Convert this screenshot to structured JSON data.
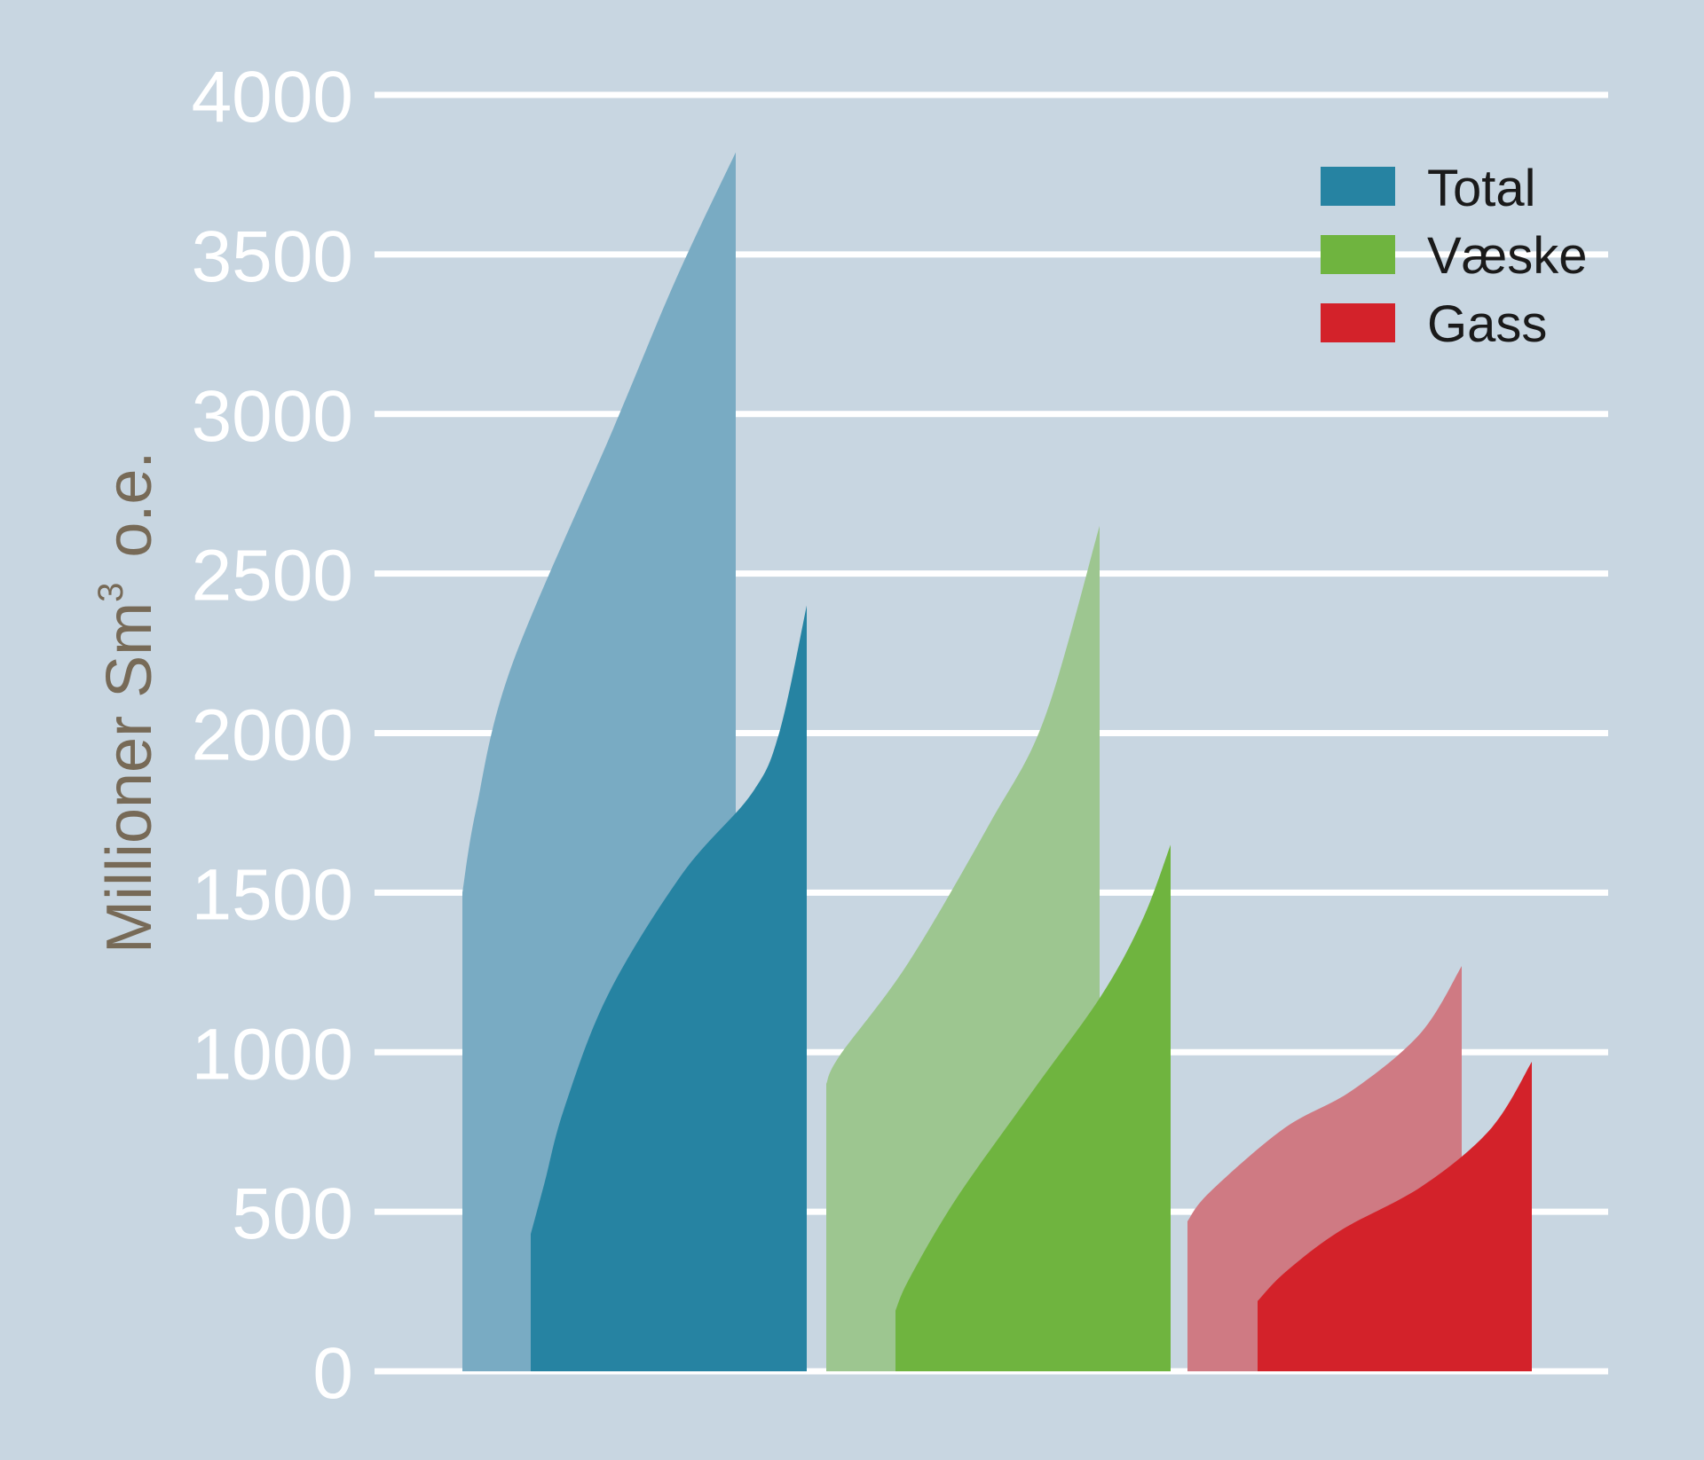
{
  "chart_data": {
    "type": "area",
    "title": "",
    "xlabel": "",
    "ylabel_main": "Millioner Sm",
    "ylabel_sup": "3",
    "ylabel_suffix": "o.e.",
    "ylim": [
      0,
      4000
    ],
    "yticks": [
      "0",
      "500",
      "1000",
      "1500",
      "2000",
      "2500",
      "3000",
      "3500",
      "4000"
    ],
    "grid": true,
    "legend_position": "top-right",
    "legend": [
      {
        "key": "total",
        "label": "Total",
        "color": "#2683a2"
      },
      {
        "key": "vaeske",
        "label": "Væske",
        "color": "#6fb43f"
      },
      {
        "key": "gass",
        "label": "Gass",
        "color": "#d3222a"
      }
    ],
    "series": [
      {
        "group": "total",
        "variant": "light",
        "color": "#79abc3",
        "points": [
          [
            0,
            1500
          ],
          [
            0.05,
            1760
          ],
          [
            0.18,
            2210
          ],
          [
            0.55,
            2950
          ],
          [
            0.78,
            3420
          ],
          [
            1,
            3820
          ]
        ]
      },
      {
        "group": "total",
        "variant": "dark",
        "color": "#2683a2",
        "points": [
          [
            0,
            430
          ],
          [
            0.05,
            590
          ],
          [
            0.12,
            820
          ],
          [
            0.28,
            1180
          ],
          [
            0.55,
            1560
          ],
          [
            0.8,
            1810
          ],
          [
            0.9,
            2000
          ],
          [
            1,
            2400
          ]
        ]
      },
      {
        "group": "vaeske",
        "variant": "light",
        "color": "#9dc690",
        "points": [
          [
            0,
            900
          ],
          [
            0.05,
            990
          ],
          [
            0.3,
            1280
          ],
          [
            0.6,
            1720
          ],
          [
            0.8,
            2050
          ],
          [
            1,
            2650
          ]
        ]
      },
      {
        "group": "vaeske",
        "variant": "dark",
        "color": "#6fb43f",
        "points": [
          [
            0,
            190
          ],
          [
            0.05,
            290
          ],
          [
            0.22,
            540
          ],
          [
            0.5,
            880
          ],
          [
            0.75,
            1180
          ],
          [
            0.9,
            1420
          ],
          [
            1,
            1650
          ]
        ]
      },
      {
        "group": "gass",
        "variant": "light",
        "color": "#cf7a83",
        "points": [
          [
            0,
            470
          ],
          [
            0.08,
            560
          ],
          [
            0.35,
            760
          ],
          [
            0.6,
            880
          ],
          [
            0.85,
            1060
          ],
          [
            1,
            1270
          ]
        ]
      },
      {
        "group": "gass",
        "variant": "dark",
        "color": "#d3222a",
        "points": [
          [
            0,
            220
          ],
          [
            0.1,
            310
          ],
          [
            0.3,
            440
          ],
          [
            0.6,
            580
          ],
          [
            0.85,
            760
          ],
          [
            1,
            970
          ]
        ]
      }
    ]
  }
}
